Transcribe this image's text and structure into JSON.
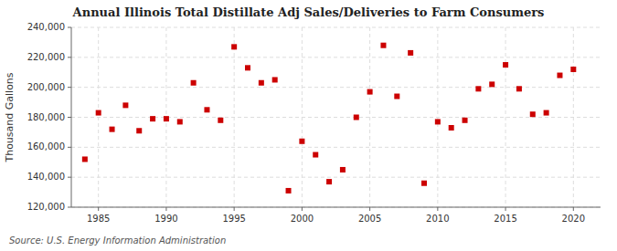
{
  "chart_data": {
    "type": "scatter",
    "title": "Annual Illinois Total Distillate Adj Sales/Deliveries to Farm Consumers",
    "y_label": "Thousand Gallons",
    "source": "Source: U.S. Energy Information Administration",
    "x": [
      1984,
      1985,
      1986,
      1987,
      1988,
      1989,
      1990,
      1991,
      1992,
      1993,
      1994,
      1995,
      1996,
      1997,
      1998,
      1999,
      2000,
      2001,
      2002,
      2003,
      2004,
      2005,
      2006,
      2007,
      2008,
      2009,
      2010,
      2011,
      2012,
      2013,
      2014,
      2015,
      2016,
      2017,
      2018,
      2019,
      2020
    ],
    "values": [
      152000,
      183000,
      172000,
      188000,
      171000,
      179000,
      179000,
      177000,
      203000,
      185000,
      178000,
      227000,
      213000,
      203000,
      205000,
      131000,
      164000,
      155000,
      137000,
      145000,
      180000,
      197000,
      228000,
      194000,
      223000,
      136000,
      177000,
      173000,
      178000,
      199000,
      202000,
      215000,
      199000,
      182000,
      183000,
      208000,
      212000
    ],
    "color": "#cc0000",
    "marker": "square",
    "xlim": [
      1983,
      2022
    ],
    "ylim": [
      120000,
      240000
    ],
    "xticks": [
      1985,
      1990,
      1995,
      2000,
      2005,
      2010,
      2015,
      2020
    ],
    "yticks": [
      {
        "value": 120000,
        "label": "120,000"
      },
      {
        "value": 140000,
        "label": "140,000"
      },
      {
        "value": 160000,
        "label": "160,000"
      },
      {
        "value": 180000,
        "label": "180,000"
      },
      {
        "value": 200000,
        "label": "200,000"
      },
      {
        "value": 220000,
        "label": "220,000"
      },
      {
        "value": 240000,
        "label": "240,000"
      }
    ],
    "grid": true
  }
}
